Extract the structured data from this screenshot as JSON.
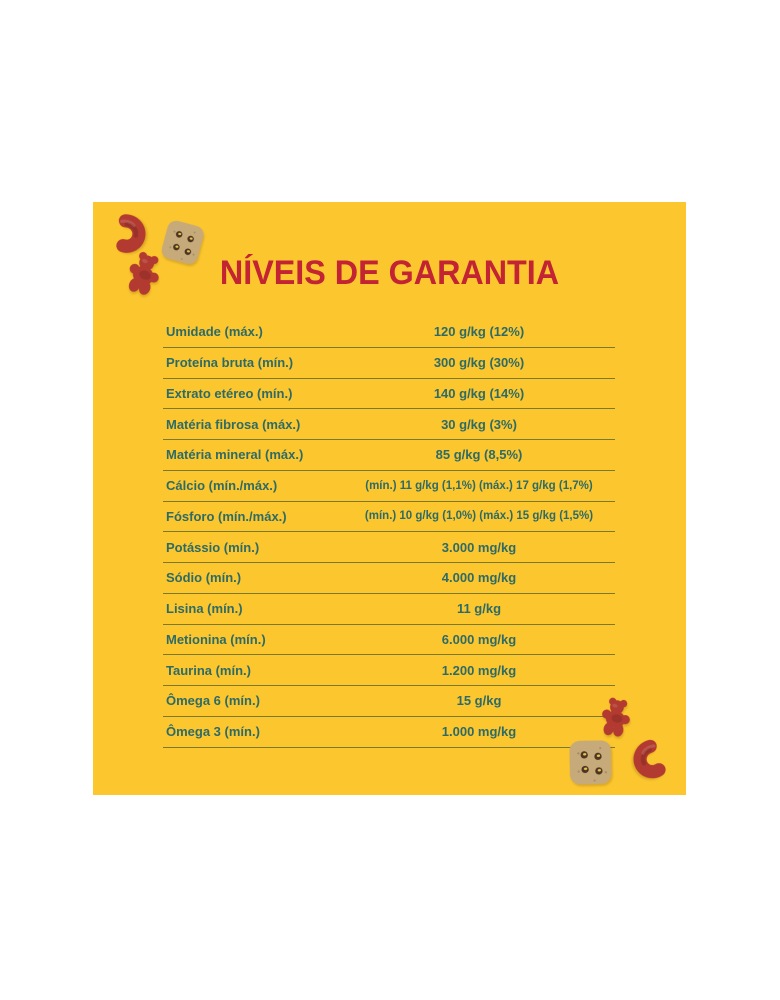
{
  "panel": {
    "title": "NÍVEIS DE GARANTIA"
  },
  "table": {
    "rows": [
      {
        "label": "Umidade (máx.)",
        "value": "120 g/kg (12%)"
      },
      {
        "label": "Proteína bruta (mín.)",
        "value": "300 g/kg (30%)"
      },
      {
        "label": "Extrato etéreo (mín.)",
        "value": "140 g/kg (14%)"
      },
      {
        "label": "Matéria fibrosa (máx.)",
        "value": "30 g/kg (3%)"
      },
      {
        "label": "Matéria mineral (máx.)",
        "value": "85 g/kg (8,5%)"
      },
      {
        "label": "Cálcio (mín./máx.)",
        "value": "(mín.) 11 g/kg (1,1%) (máx.) 17 g/kg (1,7%)"
      },
      {
        "label": "Fósforo (mín./máx.)",
        "value": "(mín.) 10 g/kg (1,0%) (máx.) 15 g/kg (1,5%)"
      },
      {
        "label": "Potássio (mín.)",
        "value": "3.000 mg/kg"
      },
      {
        "label": "Sódio (mín.)",
        "value": "4.000 mg/kg"
      },
      {
        "label": "Lisina (mín.)",
        "value": "11 g/kg"
      },
      {
        "label": "Metionina (mín.)",
        "value": "6.000 mg/kg"
      },
      {
        "label": "Taurina (mín.)",
        "value": "1.200 mg/kg"
      },
      {
        "label": "Ômega 6 (mín.)",
        "value": "15 g/kg"
      },
      {
        "label": "Ômega 3 (mín.)",
        "value": "1.000 mg/kg"
      }
    ]
  },
  "colors": {
    "background": "#ffffff",
    "panel_yellow": "#fcc62e",
    "title_red": "#c32433",
    "text_teal": "#2e6b66",
    "divider_olive": "#7b7a28",
    "kibble_red": "#b23a30",
    "kibble_tan": "#c7aa79"
  },
  "decorations": {
    "top_left_kibbles": [
      "red-comma-kibble",
      "tan-cracker-kibble",
      "red-bear-kibble"
    ],
    "bottom_right_kibbles": [
      "red-bear-kibble",
      "tan-cracker-kibble",
      "red-comma-kibble"
    ]
  }
}
